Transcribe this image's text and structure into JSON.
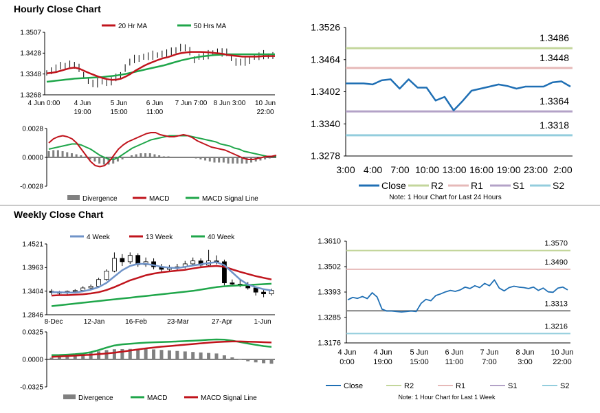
{
  "sections": {
    "hourly_title": "Hourly Close Chart",
    "weekly_title": "Weekly Close Chart"
  },
  "colors": {
    "ma_red": "#c0141c",
    "ma_green": "#1fa64a",
    "close_blue": "#1f6fb4",
    "four_week_blue": "#6f93c8",
    "r2": "#c3d69b",
    "r1": "#e6b9b8",
    "s1": "#b3a2c7",
    "s2": "#93cddd",
    "divergence": "#808080"
  },
  "chart_data": [
    {
      "id": "hourly_price",
      "type": "line",
      "legend": [
        "20 Hr MA",
        "50 Hrs MA"
      ],
      "yticks": [
        "1.3507",
        "1.3428",
        "1.3348",
        "1.3268"
      ],
      "ylim": [
        1.3268,
        1.3507
      ],
      "xticks": [
        {
          "l1": "4 Jun 0:00",
          "l2": ""
        },
        {
          "l1": "4 Jun",
          "l2": "19:00"
        },
        {
          "l1": "5 Jun",
          "l2": "15:00"
        },
        {
          "l1": "6 Jun",
          "l2": "11:00"
        },
        {
          "l1": "7 Jun 7:00",
          "l2": ""
        },
        {
          "l1": "8 Jun 3:00",
          "l2": ""
        },
        {
          "l1": "10 Jun",
          "l2": "22:00"
        }
      ],
      "close": [
        1.3352,
        1.336,
        1.3368,
        1.3375,
        1.338,
        1.3386,
        1.3378,
        1.3368,
        1.3345,
        1.332,
        1.331,
        1.3312,
        1.3318,
        1.3315,
        1.332,
        1.333,
        1.3345,
        1.3372,
        1.339,
        1.3402,
        1.341,
        1.3412,
        1.3414,
        1.3418,
        1.342,
        1.3424,
        1.3426,
        1.343,
        1.344,
        1.345,
        1.3445,
        1.3432,
        1.3405,
        1.3412,
        1.3415,
        1.342,
        1.3428,
        1.3432,
        1.343,
        1.3426,
        1.341,
        1.3395,
        1.339,
        1.3392,
        1.3402,
        1.3412,
        1.3414,
        1.342,
        1.3416,
        1.3418
      ],
      "ma20": [
        1.335,
        1.3352,
        1.3355,
        1.336,
        1.3365,
        1.337,
        1.3372,
        1.3368,
        1.336,
        1.3352,
        1.3345,
        1.3338,
        1.3332,
        1.3328,
        1.3325,
        1.3326,
        1.333,
        1.3338,
        1.3348,
        1.336,
        1.337,
        1.338,
        1.3388,
        1.3395,
        1.3402,
        1.3408,
        1.3412,
        1.3418,
        1.3424,
        1.3428,
        1.343,
        1.3432,
        1.3432,
        1.3432,
        1.3431,
        1.343,
        1.3428,
        1.3426,
        1.3424,
        1.342,
        1.3418,
        1.3416,
        1.3414,
        1.3414,
        1.3414,
        1.3414,
        1.3415,
        1.3416,
        1.3416,
        1.3416
      ],
      "ma50": [
        1.3318,
        1.332,
        1.3322,
        1.3324,
        1.3326,
        1.3328,
        1.333,
        1.3331,
        1.3332,
        1.3333,
        1.3334,
        1.3335,
        1.3336,
        1.3338,
        1.334,
        1.3342,
        1.3345,
        1.3348,
        1.3352,
        1.3356,
        1.336,
        1.3364,
        1.3368,
        1.3372,
        1.3376,
        1.338,
        1.3385,
        1.339,
        1.3395,
        1.34,
        1.3404,
        1.3408,
        1.3411,
        1.3414,
        1.3416,
        1.3418,
        1.342,
        1.3421,
        1.3422,
        1.3423,
        1.3423,
        1.3423,
        1.3423,
        1.3423,
        1.3423,
        1.3423,
        1.3423,
        1.3423,
        1.3423,
        1.3423
      ]
    },
    {
      "id": "hourly_macd",
      "type": "bar+line",
      "legend": [
        "Divergence",
        "MACD",
        "MACD Signal Line"
      ],
      "yticks": [
        "0.0028",
        "0.0000",
        "-0.0028"
      ],
      "ylim": [
        -0.0028,
        0.0028
      ],
      "macd": [
        0.0014,
        0.0018,
        0.002,
        0.0021,
        0.002,
        0.0018,
        0.0014,
        0.0008,
        0.0002,
        -0.0004,
        -0.0008,
        -0.0009,
        -0.0008,
        -0.0004,
        0.0002,
        0.0008,
        0.0012,
        0.0015,
        0.0017,
        0.0019,
        0.0021,
        0.0023,
        0.0024,
        0.0024,
        0.0022,
        0.0021,
        0.002,
        0.002,
        0.0021,
        0.0022,
        0.0021,
        0.0019,
        0.0016,
        0.0014,
        0.0012,
        0.001,
        0.0009,
        0.0008,
        0.0007,
        0.0005,
        0.0003,
        0.0001,
        -0.0001,
        -0.0002,
        -0.0002,
        -0.0001,
        0.0,
        0.0001,
        0.0001,
        0.0002
      ],
      "signal": [
        0.0008,
        0.0009,
        0.001,
        0.0011,
        0.0012,
        0.0013,
        0.0013,
        0.0012,
        0.001,
        0.0008,
        0.0005,
        0.0002,
        0.0,
        -0.0002,
        -0.0002,
        0.0,
        0.0003,
        0.0006,
        0.0009,
        0.0011,
        0.0013,
        0.0015,
        0.0017,
        0.0018,
        0.0019,
        0.002,
        0.0021,
        0.0021,
        0.0021,
        0.0021,
        0.0021,
        0.002,
        0.0019,
        0.0018,
        0.0017,
        0.0016,
        0.0015,
        0.0013,
        0.0012,
        0.0011,
        0.0009,
        0.0008,
        0.0006,
        0.0005,
        0.0004,
        0.0003,
        0.0002,
        0.0001,
        0.0001,
        0.0001
      ],
      "divergence": [
        0.0006,
        0.0007,
        0.0007,
        0.0006,
        0.0005,
        0.0004,
        0.0003,
        0.0002,
        0.0001,
        -0.0002,
        -0.0004,
        -0.0006,
        -0.0007,
        -0.0007,
        -0.0006,
        -0.0004,
        -0.0002,
        0.0,
        0.0002,
        0.0003,
        0.0004,
        0.0004,
        0.0004,
        0.0003,
        0.0002,
        0.0001,
        0.0001,
        0.0,
        0.0,
        0.0,
        0.0,
        0.0,
        -0.0001,
        -0.0002,
        -0.0003,
        -0.0004,
        -0.0005,
        -0.0005,
        -0.0005,
        -0.0006,
        -0.0006,
        -0.0006,
        -0.0006,
        -0.0006,
        -0.0005,
        -0.0004,
        -0.0003,
        -0.0002,
        -0.0001,
        0.0
      ]
    },
    {
      "id": "hourly_pivots",
      "type": "line",
      "yticks": [
        "1.3526",
        "1.3464",
        "1.3402",
        "1.3340",
        "1.3278"
      ],
      "ylim": [
        1.3278,
        1.3526
      ],
      "xticks": [
        "3:00",
        "4:00",
        "7:00",
        "10:00",
        "13:00",
        "16:00",
        "19:00",
        "23:00",
        "2:00"
      ],
      "levels": {
        "r2": "1.3486",
        "r1": "1.3448",
        "s1": "1.3364",
        "s2": "1.3318"
      },
      "level_values": {
        "r2": 1.3486,
        "r1": 1.3448,
        "s1": 1.3364,
        "s2": 1.3318
      },
      "close": [
        1.3418,
        1.3418,
        1.3418,
        1.3416,
        1.3424,
        1.3426,
        1.3408,
        1.3426,
        1.341,
        1.341,
        1.3385,
        1.3392,
        1.3366,
        1.3384,
        1.3404,
        1.3408,
        1.3412,
        1.3416,
        1.3413,
        1.3408,
        1.3412,
        1.3412,
        1.3412,
        1.342,
        1.3422,
        1.3412
      ],
      "legend": [
        "Close",
        "R2",
        "R1",
        "S1",
        "S2"
      ],
      "note": "Note: 1 Hour Chart for Last 24 Hours"
    },
    {
      "id": "weekly_price",
      "type": "candlestick+line",
      "legend": [
        "4 Week",
        "13 Week",
        "40 Week"
      ],
      "yticks": [
        "1.4521",
        "1.3963",
        "1.3404",
        "1.2846"
      ],
      "ylim": [
        1.2846,
        1.4521
      ],
      "xticks": [
        "8-Dec",
        "12-Jan",
        "16-Feb",
        "23-Mar",
        "27-Apr",
        "1-Jun"
      ],
      "candles": [
        [
          1.34,
          1.345,
          1.332,
          1.338
        ],
        [
          1.338,
          1.341,
          1.33,
          1.336
        ],
        [
          1.336,
          1.342,
          1.332,
          1.34
        ],
        [
          1.34,
          1.345,
          1.335,
          1.342
        ],
        [
          1.342,
          1.352,
          1.338,
          1.348
        ],
        [
          1.348,
          1.356,
          1.344,
          1.352
        ],
        [
          1.352,
          1.372,
          1.35,
          1.368
        ],
        [
          1.368,
          1.392,
          1.365,
          1.388
        ],
        [
          1.388,
          1.432,
          1.385,
          1.418
        ],
        [
          1.418,
          1.428,
          1.4,
          1.41
        ],
        [
          1.41,
          1.432,
          1.405,
          1.425
        ],
        [
          1.425,
          1.43,
          1.398,
          1.403
        ],
        [
          1.403,
          1.42,
          1.398,
          1.41
        ],
        [
          1.41,
          1.418,
          1.392,
          1.398
        ],
        [
          1.398,
          1.405,
          1.385,
          1.392
        ],
        [
          1.392,
          1.402,
          1.386,
          1.395
        ],
        [
          1.395,
          1.405,
          1.388,
          1.398
        ],
        [
          1.398,
          1.412,
          1.394,
          1.405
        ],
        [
          1.405,
          1.42,
          1.4,
          1.412
        ],
        [
          1.412,
          1.418,
          1.395,
          1.402
        ],
        [
          1.402,
          1.438,
          1.398,
          1.412
        ],
        [
          1.412,
          1.425,
          1.404,
          1.41
        ],
        [
          1.41,
          1.415,
          1.354,
          1.36
        ],
        [
          1.36,
          1.368,
          1.352,
          1.357
        ],
        [
          1.357,
          1.366,
          1.35,
          1.355
        ],
        [
          1.355,
          1.362,
          1.344,
          1.348
        ],
        [
          1.348,
          1.352,
          1.33,
          1.338
        ],
        [
          1.338,
          1.345,
          1.326,
          1.334
        ],
        [
          1.334,
          1.346,
          1.33,
          1.342
        ]
      ],
      "wk4": [
        1.338,
        1.338,
        1.337,
        1.337,
        1.34,
        1.344,
        1.35,
        1.36,
        1.375,
        1.39,
        1.4,
        1.405,
        1.405,
        1.402,
        1.398,
        1.396,
        1.395,
        1.398,
        1.401,
        1.404,
        1.407,
        1.409,
        1.402,
        1.385,
        1.368,
        1.356,
        1.35,
        1.345,
        1.342
      ],
      "wk13": [
        1.33,
        1.331,
        1.331,
        1.332,
        1.333,
        1.335,
        1.338,
        1.343,
        1.35,
        1.358,
        1.366,
        1.372,
        1.378,
        1.382,
        1.385,
        1.387,
        1.389,
        1.391,
        1.394,
        1.397,
        1.399,
        1.4,
        1.398,
        1.392,
        1.386,
        1.381,
        1.376,
        1.372,
        1.368
      ],
      "wk40": [
        1.305,
        1.307,
        1.309,
        1.311,
        1.313,
        1.315,
        1.317,
        1.319,
        1.321,
        1.323,
        1.325,
        1.327,
        1.329,
        1.331,
        1.333,
        1.335,
        1.337,
        1.339,
        1.341,
        1.344,
        1.347,
        1.35,
        1.352,
        1.353,
        1.354,
        1.355,
        1.356,
        1.357,
        1.358
      ]
    },
    {
      "id": "weekly_macd",
      "type": "bar+line",
      "legend": [
        "Divergence",
        "MACD",
        "MACD Signal Line"
      ],
      "yticks": [
        "0.0325",
        "0.0000",
        "-0.0325"
      ],
      "ylim": [
        -0.0325,
        0.0325
      ],
      "macd": [
        0.005,
        0.0052,
        0.0056,
        0.0062,
        0.007,
        0.0085,
        0.011,
        0.014,
        0.0165,
        0.0178,
        0.0185,
        0.0192,
        0.0198,
        0.0202,
        0.0205,
        0.0208,
        0.0212,
        0.0216,
        0.022,
        0.0226,
        0.0232,
        0.0236,
        0.0234,
        0.0222,
        0.0205,
        0.0188,
        0.0172,
        0.0158,
        0.0148
      ],
      "signal": [
        0.003,
        0.0035,
        0.004,
        0.0045,
        0.005,
        0.0055,
        0.0062,
        0.007,
        0.008,
        0.0092,
        0.0105,
        0.0118,
        0.013,
        0.014,
        0.015,
        0.0158,
        0.0166,
        0.0174,
        0.0182,
        0.019,
        0.0198,
        0.0205,
        0.021,
        0.0212,
        0.0212,
        0.021,
        0.0207,
        0.0203,
        0.02
      ],
      "divergence": [
        0.002,
        0.0026,
        0.0036,
        0.005,
        0.0066,
        0.008,
        0.0095,
        0.011,
        0.012,
        0.0122,
        0.0124,
        0.0124,
        0.0122,
        0.0118,
        0.0112,
        0.0106,
        0.01,
        0.0094,
        0.0088,
        0.0082,
        0.0076,
        0.007,
        0.0048,
        0.0024,
        -0.0006,
        -0.0022,
        -0.0035,
        -0.0045,
        -0.0052
      ]
    },
    {
      "id": "weekly_pivots",
      "type": "line",
      "yticks": [
        "1.3610",
        "1.3502",
        "1.3393",
        "1.3285",
        "1.3176"
      ],
      "ylim": [
        1.3176,
        1.361
      ],
      "xticks": [
        {
          "l1": "4 Jun",
          "l2": "0:00"
        },
        {
          "l1": "4 Jun",
          "l2": "19:00"
        },
        {
          "l1": "5 Jun",
          "l2": "15:00"
        },
        {
          "l1": "6 Jun",
          "l2": "11:00"
        },
        {
          "l1": "7 Jun",
          "l2": "7:00"
        },
        {
          "l1": "8 Jun",
          "l2": "3:00"
        },
        {
          "l1": "10 Jun",
          "l2": "22:00"
        }
      ],
      "levels": {
        "r2": "1.3570",
        "r1": "1.3490",
        "s1": "1.3313",
        "s2": "1.3216"
      },
      "level_values": {
        "r2": 1.357,
        "r1": 1.349,
        "s1": 1.3313,
        "s2": 1.3216
      },
      "close": [
        1.336,
        1.337,
        1.3366,
        1.3374,
        1.3365,
        1.339,
        1.3372,
        1.332,
        1.3312,
        1.3312,
        1.331,
        1.3308,
        1.331,
        1.3312,
        1.331,
        1.3345,
        1.3362,
        1.3356,
        1.3378,
        1.3385,
        1.3394,
        1.34,
        1.3396,
        1.3402,
        1.3414,
        1.3408,
        1.342,
        1.3412,
        1.343,
        1.342,
        1.3445,
        1.341,
        1.3398,
        1.3412,
        1.3418,
        1.3414,
        1.3412,
        1.3408,
        1.3414,
        1.34,
        1.341,
        1.3394,
        1.3392,
        1.341,
        1.3414,
        1.3402
      ],
      "legend": [
        "Close",
        "R2",
        "R1",
        "S1",
        "S2"
      ],
      "note": "Note: 1 Hour Chart for Last 1 Week"
    }
  ]
}
